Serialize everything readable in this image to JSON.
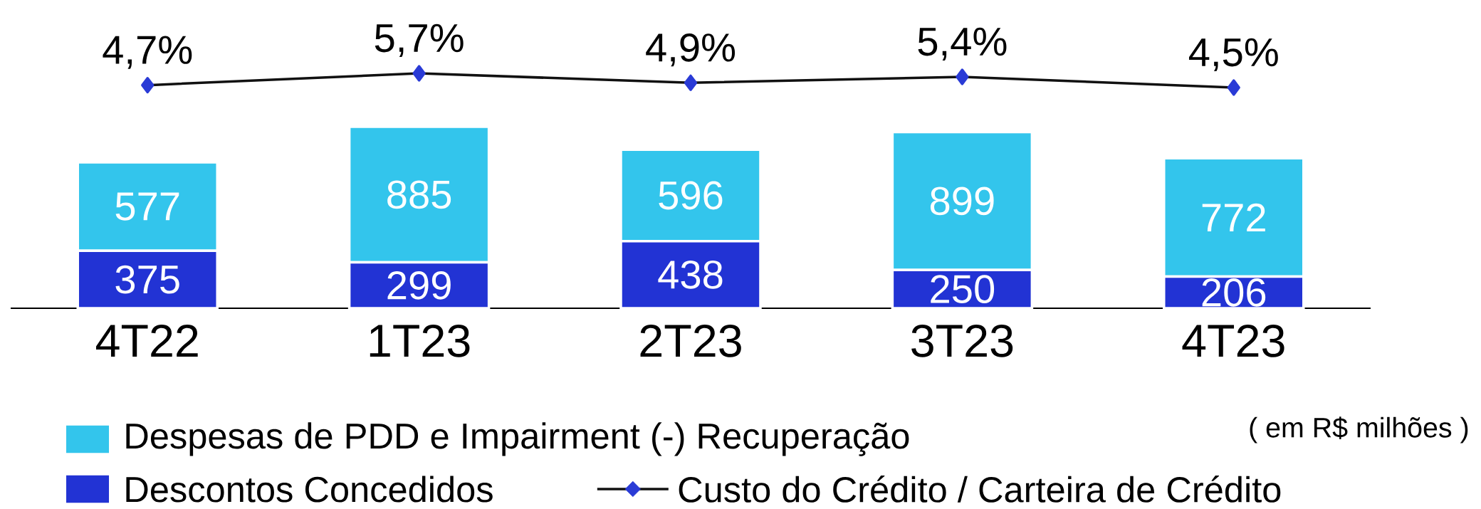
{
  "chart_data": [
    {
      "type": "line",
      "categories": [
        null,
        null,
        null,
        null,
        null
      ],
      "series": [
        {
          "name": "Custo do Crédito / Carteira de Crédito",
          "color": "#111111",
          "values": [
            4.7,
            5.7,
            4.9,
            5.4,
            4.5
          ],
          "value_labels": [
            "4,7%",
            "5,7%",
            "4,9%",
            "5,4%",
            "4,5%"
          ]
        }
      ],
      "marker": "diamond",
      "tick_labels": false,
      "legend": "bottom"
    },
    {
      "type": "bar",
      "stacked": true,
      "categories": [
        "4T22",
        "1T23",
        "2T23",
        "3T23",
        "4T23"
      ],
      "series": [
        {
          "name": "Descontos Concedidos",
          "color": "#2233d4",
          "values": [
            375,
            299,
            438,
            250,
            206
          ],
          "value_labels": [
            "375",
            "299",
            "438",
            "250",
            "206"
          ]
        },
        {
          "name": "Despesas de PDD e Impairment (-) Recuperação",
          "color": "#33c5ec",
          "values": [
            577,
            885,
            596,
            899,
            772
          ],
          "value_labels": [
            "577",
            "885",
            "596",
            "899",
            "772"
          ]
        }
      ],
      "tick_labels": "x",
      "legend": "bottom",
      "annotations": [
        "( em R$ milhões )"
      ]
    }
  ]
}
